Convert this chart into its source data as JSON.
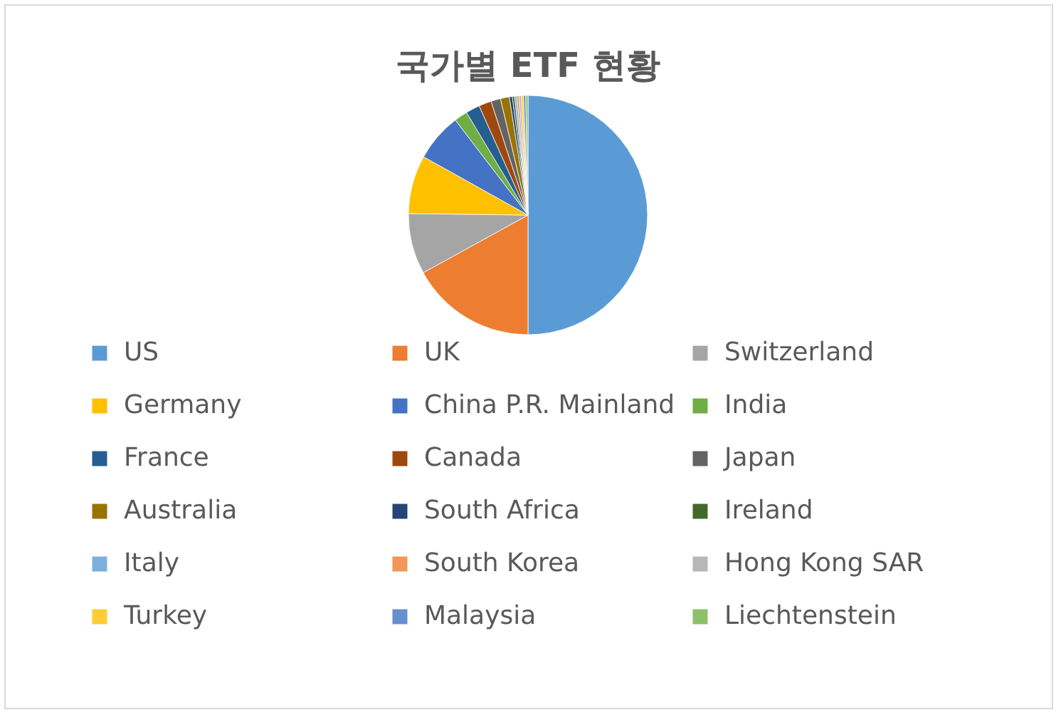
{
  "chart_data": {
    "type": "pie",
    "title": "국가별 ETF 현황",
    "categories": [
      "US",
      "UK",
      "Switzerland",
      "Germany",
      "China P.R. Mainland",
      "India",
      "France",
      "Canada",
      "Japan",
      "Australia",
      "South Africa",
      "Ireland",
      "Italy",
      "South Korea",
      "Hong Kong SAR",
      "Turkey",
      "Malaysia",
      "Liechtenstein"
    ],
    "values": [
      50,
      17.0,
      8.2,
      7.9,
      6.5,
      1.8,
      1.9,
      1.7,
      1.3,
      1.2,
      0.4,
      0.3,
      0.3,
      0.3,
      0.3,
      0.3,
      0.3,
      0.3
    ],
    "colors": [
      "#5b9bd5",
      "#ed7d31",
      "#a5a5a5",
      "#ffc000",
      "#4472c4",
      "#70ad47",
      "#255e91",
      "#9e480e",
      "#636363",
      "#997300",
      "#264478",
      "#43682b",
      "#7cafdd",
      "#f1975a",
      "#b7b7b7",
      "#ffcd33",
      "#698ed0",
      "#8cc168"
    ],
    "legend": "bottom"
  }
}
